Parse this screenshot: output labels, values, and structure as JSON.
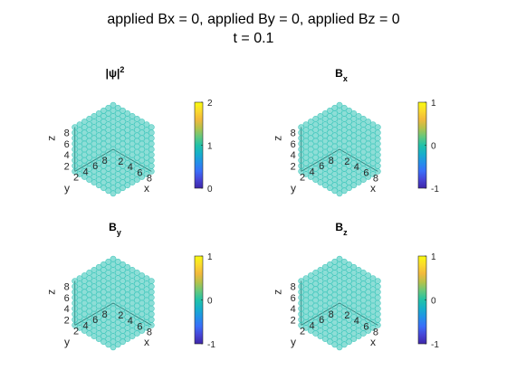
{
  "figure": {
    "title_line1": "applied Bx = 0, applied By = 0, applied Bz = 0",
    "title_line2": "t = 0.1"
  },
  "marker_color": "#31C3B7",
  "colormap": [
    "#3E26A8",
    "#4745D6",
    "#3A6EF9",
    "#2390E8",
    "#16AFCB",
    "#21C2A8",
    "#65C87D",
    "#B4C24B",
    "#F2B93C",
    "#FBDA2E",
    "#F9FB0E"
  ],
  "chart_data": [
    {
      "type": "scatter3d",
      "title": "|ψ|²",
      "title_main": "|ψ|",
      "title_sup": "2",
      "xlabel": "x",
      "ylabel": "y",
      "zlabel": "z",
      "xticks": [
        "2",
        "4",
        "6",
        "8"
      ],
      "yticks": [
        "8",
        "6",
        "4",
        "2"
      ],
      "zticks": [
        "2",
        "4",
        "6",
        "8"
      ],
      "grid": [
        1,
        9
      ],
      "color_value": 1,
      "colorbar": {
        "range": [
          0,
          2
        ],
        "ticks": [
          "2",
          "1",
          "0"
        ]
      }
    },
    {
      "type": "scatter3d",
      "title": "Bx",
      "title_main": "B",
      "title_sub": "x",
      "xlabel": "x",
      "ylabel": "y",
      "zlabel": "z",
      "xticks": [
        "2",
        "4",
        "6",
        "8"
      ],
      "yticks": [
        "8",
        "6",
        "4",
        "2"
      ],
      "zticks": [
        "2",
        "4",
        "6",
        "8"
      ],
      "grid": [
        1,
        9
      ],
      "color_value": 0,
      "colorbar": {
        "range": [
          -1,
          1
        ],
        "ticks": [
          "1",
          "0",
          "-1"
        ]
      }
    },
    {
      "type": "scatter3d",
      "title": "By",
      "title_main": "B",
      "title_sub": "y",
      "xlabel": "x",
      "ylabel": "y",
      "zlabel": "z",
      "xticks": [
        "2",
        "4",
        "6",
        "8"
      ],
      "yticks": [
        "8",
        "6",
        "4",
        "2"
      ],
      "zticks": [
        "2",
        "4",
        "6",
        "8"
      ],
      "grid": [
        1,
        9
      ],
      "color_value": 0,
      "colorbar": {
        "range": [
          -1,
          1
        ],
        "ticks": [
          "1",
          "0",
          "-1"
        ]
      }
    },
    {
      "type": "scatter3d",
      "title": "Bz",
      "title_main": "B",
      "title_sub": "z",
      "xlabel": "x",
      "ylabel": "y",
      "zlabel": "z",
      "xticks": [
        "2",
        "4",
        "6",
        "8"
      ],
      "yticks": [
        "8",
        "6",
        "4",
        "2"
      ],
      "zticks": [
        "2",
        "4",
        "6",
        "8"
      ],
      "grid": [
        1,
        9
      ],
      "color_value": 0,
      "colorbar": {
        "range": [
          -1,
          1
        ],
        "ticks": [
          "1",
          "0",
          "-1"
        ]
      }
    }
  ]
}
